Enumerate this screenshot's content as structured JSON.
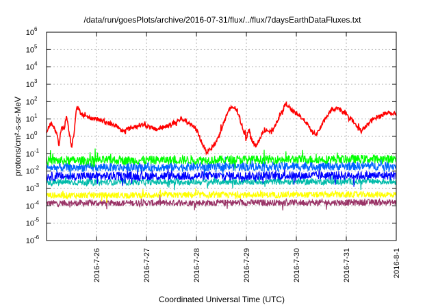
{
  "chart_data": {
    "type": "line",
    "title": "/data/run/goesPlots/archive/2016-07-31/flux/../flux/7daysEarthDataFluxes.txt",
    "xlabel": "Coordinated Universal Time (UTC)",
    "ylabel": "protons/cm²-s-sr-MeV",
    "yscale": "log",
    "ylim_exponents": [
      -6,
      6
    ],
    "y_tick_base": "10",
    "y_tick_exponents": [
      "-6",
      "-5",
      "-4",
      "-3",
      "-2",
      "-1",
      "0",
      "1",
      "2",
      "3",
      "4",
      "5",
      "6"
    ],
    "x_start_day": 25.0,
    "x_end_day": 32.0,
    "x_ticks": [
      {
        "day": 26,
        "label": "2016-7-26"
      },
      {
        "day": 27,
        "label": "2016-7-27"
      },
      {
        "day": 28,
        "label": "2016-7-28"
      },
      {
        "day": 29,
        "label": "2016-7-29"
      },
      {
        "day": 30,
        "label": "2016-7-30"
      },
      {
        "day": 31,
        "label": "2016-7-31"
      },
      {
        "day": 32,
        "label": "2016-8-1"
      }
    ],
    "grid": true,
    "series": [
      {
        "color": "#ff0000",
        "noise": 0.12,
        "x": [
          25.0,
          25.1,
          25.2,
          25.25,
          25.3,
          25.35,
          25.4,
          25.45,
          25.5,
          25.55,
          25.6,
          25.7,
          25.8,
          26.0,
          26.2,
          26.4,
          26.5,
          26.7,
          26.9,
          27.0,
          27.2,
          27.5,
          27.7,
          27.8,
          28.0,
          28.1,
          28.2,
          28.3,
          28.4,
          28.5,
          28.6,
          28.7,
          28.8,
          28.9,
          29.0,
          29.05,
          29.1,
          29.2,
          29.3,
          29.4,
          29.5,
          29.6,
          29.7,
          29.8,
          29.85,
          29.9,
          30.0,
          30.1,
          30.2,
          30.3,
          30.4,
          30.5,
          30.6,
          30.7,
          30.8,
          30.9,
          31.0,
          31.1,
          31.2,
          31.3,
          31.4,
          31.5,
          31.6,
          31.7,
          31.8,
          31.9,
          32.0
        ],
        "log10_y": [
          0.3,
          0.8,
          0.2,
          -0.5,
          0.6,
          0.4,
          1.2,
          0.3,
          -0.6,
          0.2,
          1.7,
          1.3,
          1.1,
          1.0,
          0.8,
          0.6,
          0.3,
          0.5,
          0.7,
          0.6,
          0.4,
          0.7,
          1.0,
          0.9,
          0.4,
          -0.3,
          -0.9,
          -0.7,
          -0.3,
          0.4,
          1.2,
          1.7,
          1.6,
          0.7,
          -0.1,
          0.5,
          -0.2,
          -0.6,
          0.1,
          0.4,
          0.2,
          0.8,
          1.4,
          1.9,
          1.7,
          1.5,
          1.3,
          1.1,
          0.8,
          0.3,
          0.1,
          0.6,
          1.1,
          1.5,
          1.6,
          1.5,
          1.2,
          1.0,
          0.6,
          0.3,
          0.6,
          0.9,
          1.1,
          1.2,
          1.4,
          1.3,
          1.3
        ]
      },
      {
        "color": "#00ff00",
        "x": [
          25.0,
          32.0
        ],
        "log10_y": [
          -1.4,
          -1.3
        ],
        "noise": 0.25
      },
      {
        "color": "#0066ff",
        "x": [
          25.0,
          32.0
        ],
        "log10_y": [
          -1.8,
          -1.7
        ],
        "noise": 0.25
      },
      {
        "color": "#0000ff",
        "x": [
          25.0,
          32.0
        ],
        "log10_y": [
          -2.3,
          -2.25
        ],
        "noise": 0.25
      },
      {
        "color": "#00bbaa",
        "x": [
          25.0,
          32.0
        ],
        "log10_y": [
          -2.65,
          -2.6
        ],
        "noise": 0.18
      },
      {
        "color": "#ffff00",
        "x": [
          25.0,
          32.0
        ],
        "log10_y": [
          -3.4,
          -3.35
        ],
        "noise": 0.18
      },
      {
        "color": "#993366",
        "x": [
          25.0,
          32.0
        ],
        "log10_y": [
          -3.85,
          -3.8
        ],
        "noise": 0.18
      }
    ]
  }
}
